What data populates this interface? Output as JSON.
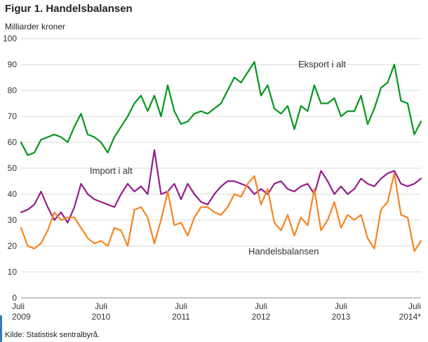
{
  "header": {
    "title": "Figur 1. Handelsbalansen"
  },
  "footer": {
    "source": "Kilde: Statistisk sentralbyrå."
  },
  "colors": {
    "eksport": "#06961c",
    "import": "#941e8f",
    "handelsbalansen": "#f8841e",
    "grid": "#d9d9d9",
    "axis": "#8a8a8a",
    "accent_blue": "#2d7dc1"
  },
  "chart_data": {
    "type": "line",
    "title": "Figur 1. Handelsbalansen",
    "xlabel": "",
    "ylabel": "Milliarder kroner",
    "ylim": [
      0,
      100
    ],
    "y_ticks": [
      0,
      10,
      20,
      30,
      40,
      50,
      60,
      70,
      80,
      90,
      100
    ],
    "grid": "horizontal",
    "legend": "inline-annotations",
    "x_count": 61,
    "x_range_note": "monthly data, Juli 2009 to Juli 2014*",
    "x_ticks": [
      {
        "month": "Juli",
        "year": "2009",
        "i": 0
      },
      {
        "month": "Juli",
        "year": "2010",
        "i": 12
      },
      {
        "month": "Juli",
        "year": "2011",
        "i": 24
      },
      {
        "month": "Juli",
        "year": "2012",
        "i": 36
      },
      {
        "month": "Juli",
        "year": "2013",
        "i": 48
      },
      {
        "month": "Juli",
        "year": "2014*",
        "i": 60
      }
    ],
    "series": [
      {
        "name": "Eksport i alt",
        "color": "#06961c",
        "values": [
          60,
          55,
          56,
          61,
          62,
          63,
          62,
          60,
          66,
          71,
          63,
          62,
          60,
          56,
          62,
          66,
          70,
          75,
          78,
          72,
          78,
          70,
          82,
          72,
          67,
          68,
          71,
          72,
          71,
          73,
          75,
          80,
          85,
          83,
          87,
          91,
          78,
          82,
          73,
          71,
          74,
          65,
          74,
          72,
          82,
          75,
          75,
          77,
          70,
          72,
          72,
          78,
          67,
          73,
          81,
          83,
          90,
          76,
          75,
          63,
          68
        ]
      },
      {
        "name": "Import i alt",
        "color": "#941e8f",
        "values": [
          33,
          34,
          36,
          41,
          35,
          30,
          33,
          29,
          35,
          44,
          40,
          38,
          37,
          36,
          35,
          40,
          44,
          41,
          43,
          40,
          57,
          40,
          41,
          44,
          38,
          44,
          40,
          37,
          36,
          40,
          43,
          45,
          45,
          44,
          43,
          40,
          42,
          40,
          44,
          45,
          42,
          41,
          43,
          44,
          40,
          49,
          45,
          40,
          43,
          40,
          42,
          46,
          44,
          43,
          46,
          48,
          49,
          44,
          43,
          44,
          46
        ]
      },
      {
        "name": "Handelsbalansen",
        "color": "#f8841e",
        "values": [
          27,
          20,
          19,
          21,
          26,
          33,
          30,
          31,
          31,
          27,
          23,
          21,
          22,
          20,
          27,
          26,
          20,
          34,
          35,
          31,
          21,
          30,
          41,
          28,
          29,
          24,
          31,
          35,
          35,
          33,
          32,
          35,
          40,
          39,
          44,
          47,
          36,
          42,
          29,
          26,
          32,
          24,
          31,
          28,
          42,
          26,
          30,
          37,
          27,
          32,
          30,
          32,
          23,
          19,
          34,
          37,
          48,
          32,
          31,
          18,
          22
        ]
      }
    ]
  }
}
